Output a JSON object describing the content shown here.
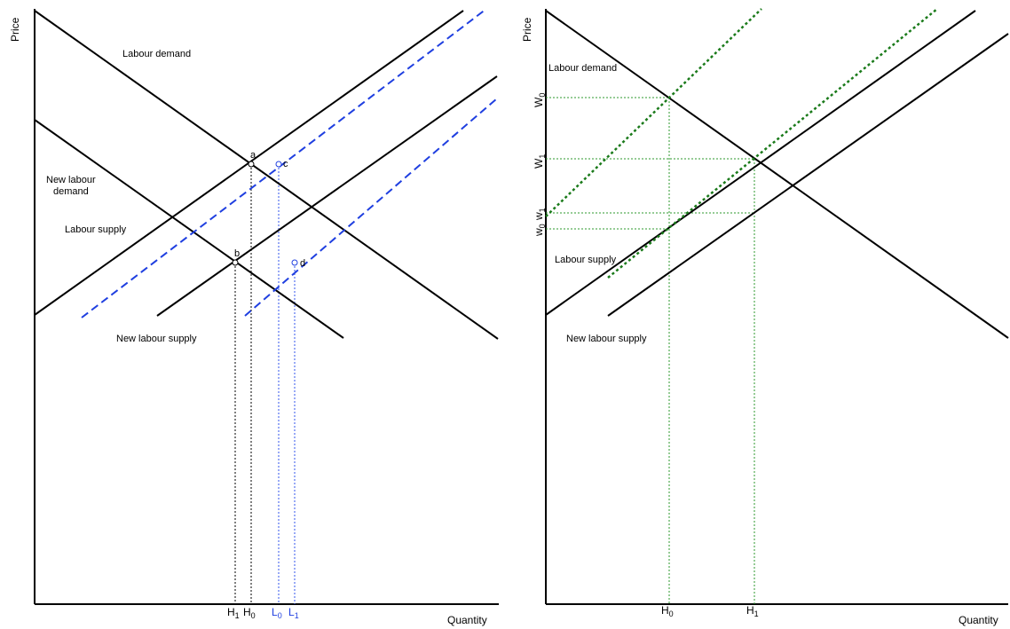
{
  "left_panel": {
    "y_axis_label": "Price",
    "x_axis_label": "Quantity",
    "curve_labels": {
      "labour_demand": "Labour demand",
      "new_labour_demand_line1": "New labour",
      "new_labour_demand_line2": "demand",
      "labour_supply": "Labour supply",
      "new_labour_supply": "New labour supply"
    },
    "points": {
      "a": "a",
      "b": "b",
      "c": "c",
      "d": "d"
    },
    "ticks": {
      "h1": {
        "main": "H",
        "sub": "1"
      },
      "h0": {
        "main": "H",
        "sub": "0"
      },
      "l0": {
        "main": "L",
        "sub": "0"
      },
      "l1": {
        "main": "L",
        "sub": "1"
      }
    }
  },
  "right_panel": {
    "y_axis_label": "Price",
    "x_axis_label": "Quantity",
    "curve_labels": {
      "labour_demand": "Labour demand",
      "labour_supply": "Labour supply",
      "new_labour_supply": "New labour supply"
    },
    "x_ticks": {
      "h0": {
        "main": "H",
        "sub": "0"
      },
      "h1": {
        "main": "H",
        "sub": "1"
      }
    },
    "y_ticks": {
      "W0": {
        "main": "W",
        "sub": "0"
      },
      "W1": {
        "main": "W",
        "sub": "1"
      },
      "w1": {
        "main": "w",
        "sub": "1"
      },
      "w0": {
        "main": "w",
        "sub": "0"
      }
    }
  },
  "colors": {
    "axes": "#000000",
    "shift_lines": "#1f3fe0",
    "green_lines": "#1a7a1a"
  }
}
